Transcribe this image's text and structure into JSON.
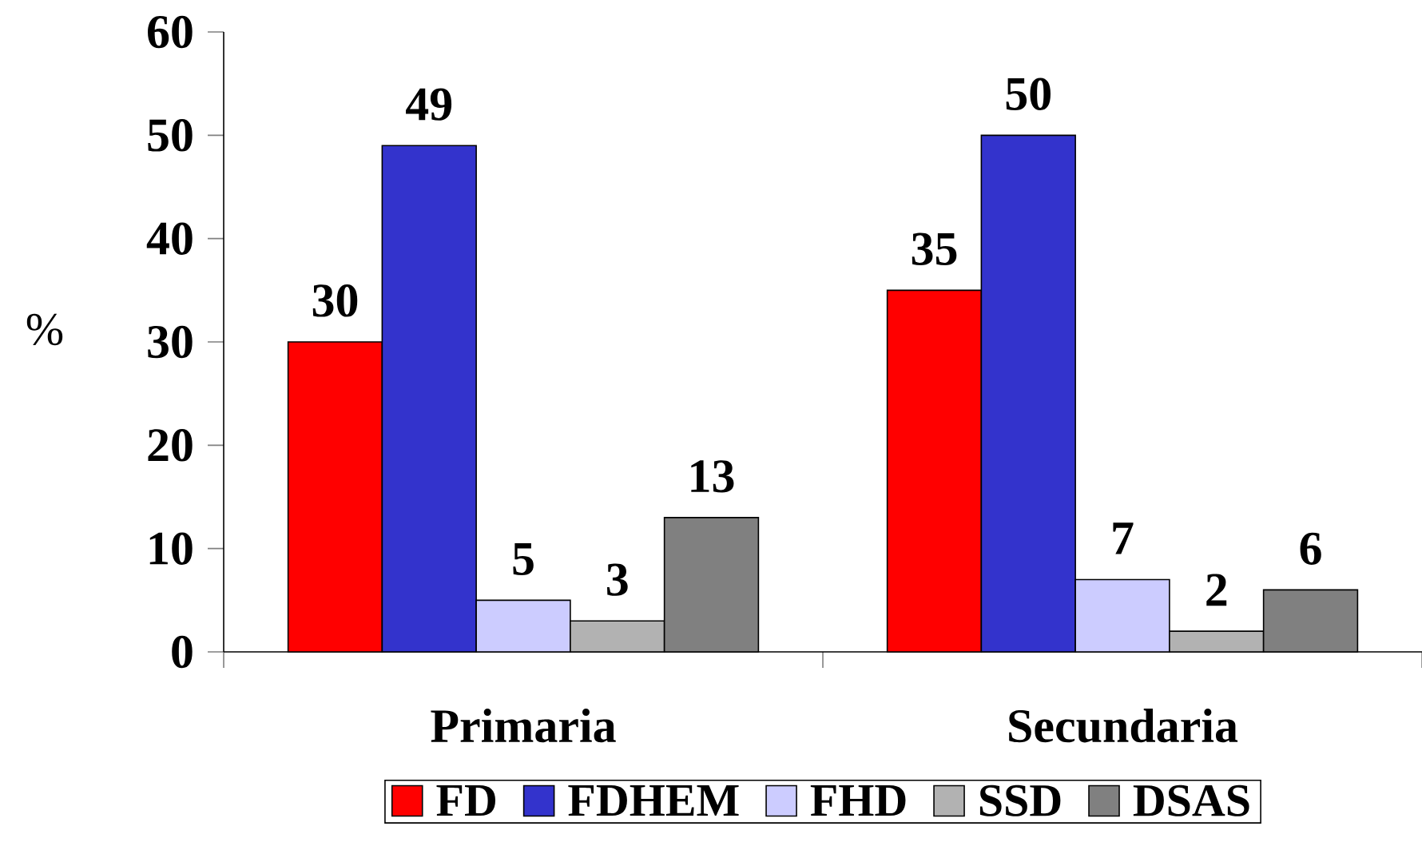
{
  "chart_data": {
    "type": "bar",
    "ylabel": "%",
    "categories": [
      "Primaria",
      "Secundaria"
    ],
    "series": [
      {
        "name": "FD",
        "color": "#ff0000",
        "values": [
          30,
          35
        ]
      },
      {
        "name": "FDHEM",
        "color": "#3333cc",
        "values": [
          49,
          50
        ]
      },
      {
        "name": "FHD",
        "color": "#ccccff",
        "values": [
          5,
          7
        ]
      },
      {
        "name": "SSD",
        "color": "#b2b2b2",
        "values": [
          3,
          2
        ]
      },
      {
        "name": "DSAS",
        "color": "#808080",
        "values": [
          13,
          6
        ]
      }
    ],
    "ylim": [
      0,
      60
    ],
    "yticks": [
      0,
      10,
      20,
      30,
      40,
      50,
      60
    ],
    "data_labels": true,
    "legend": "bottom"
  }
}
